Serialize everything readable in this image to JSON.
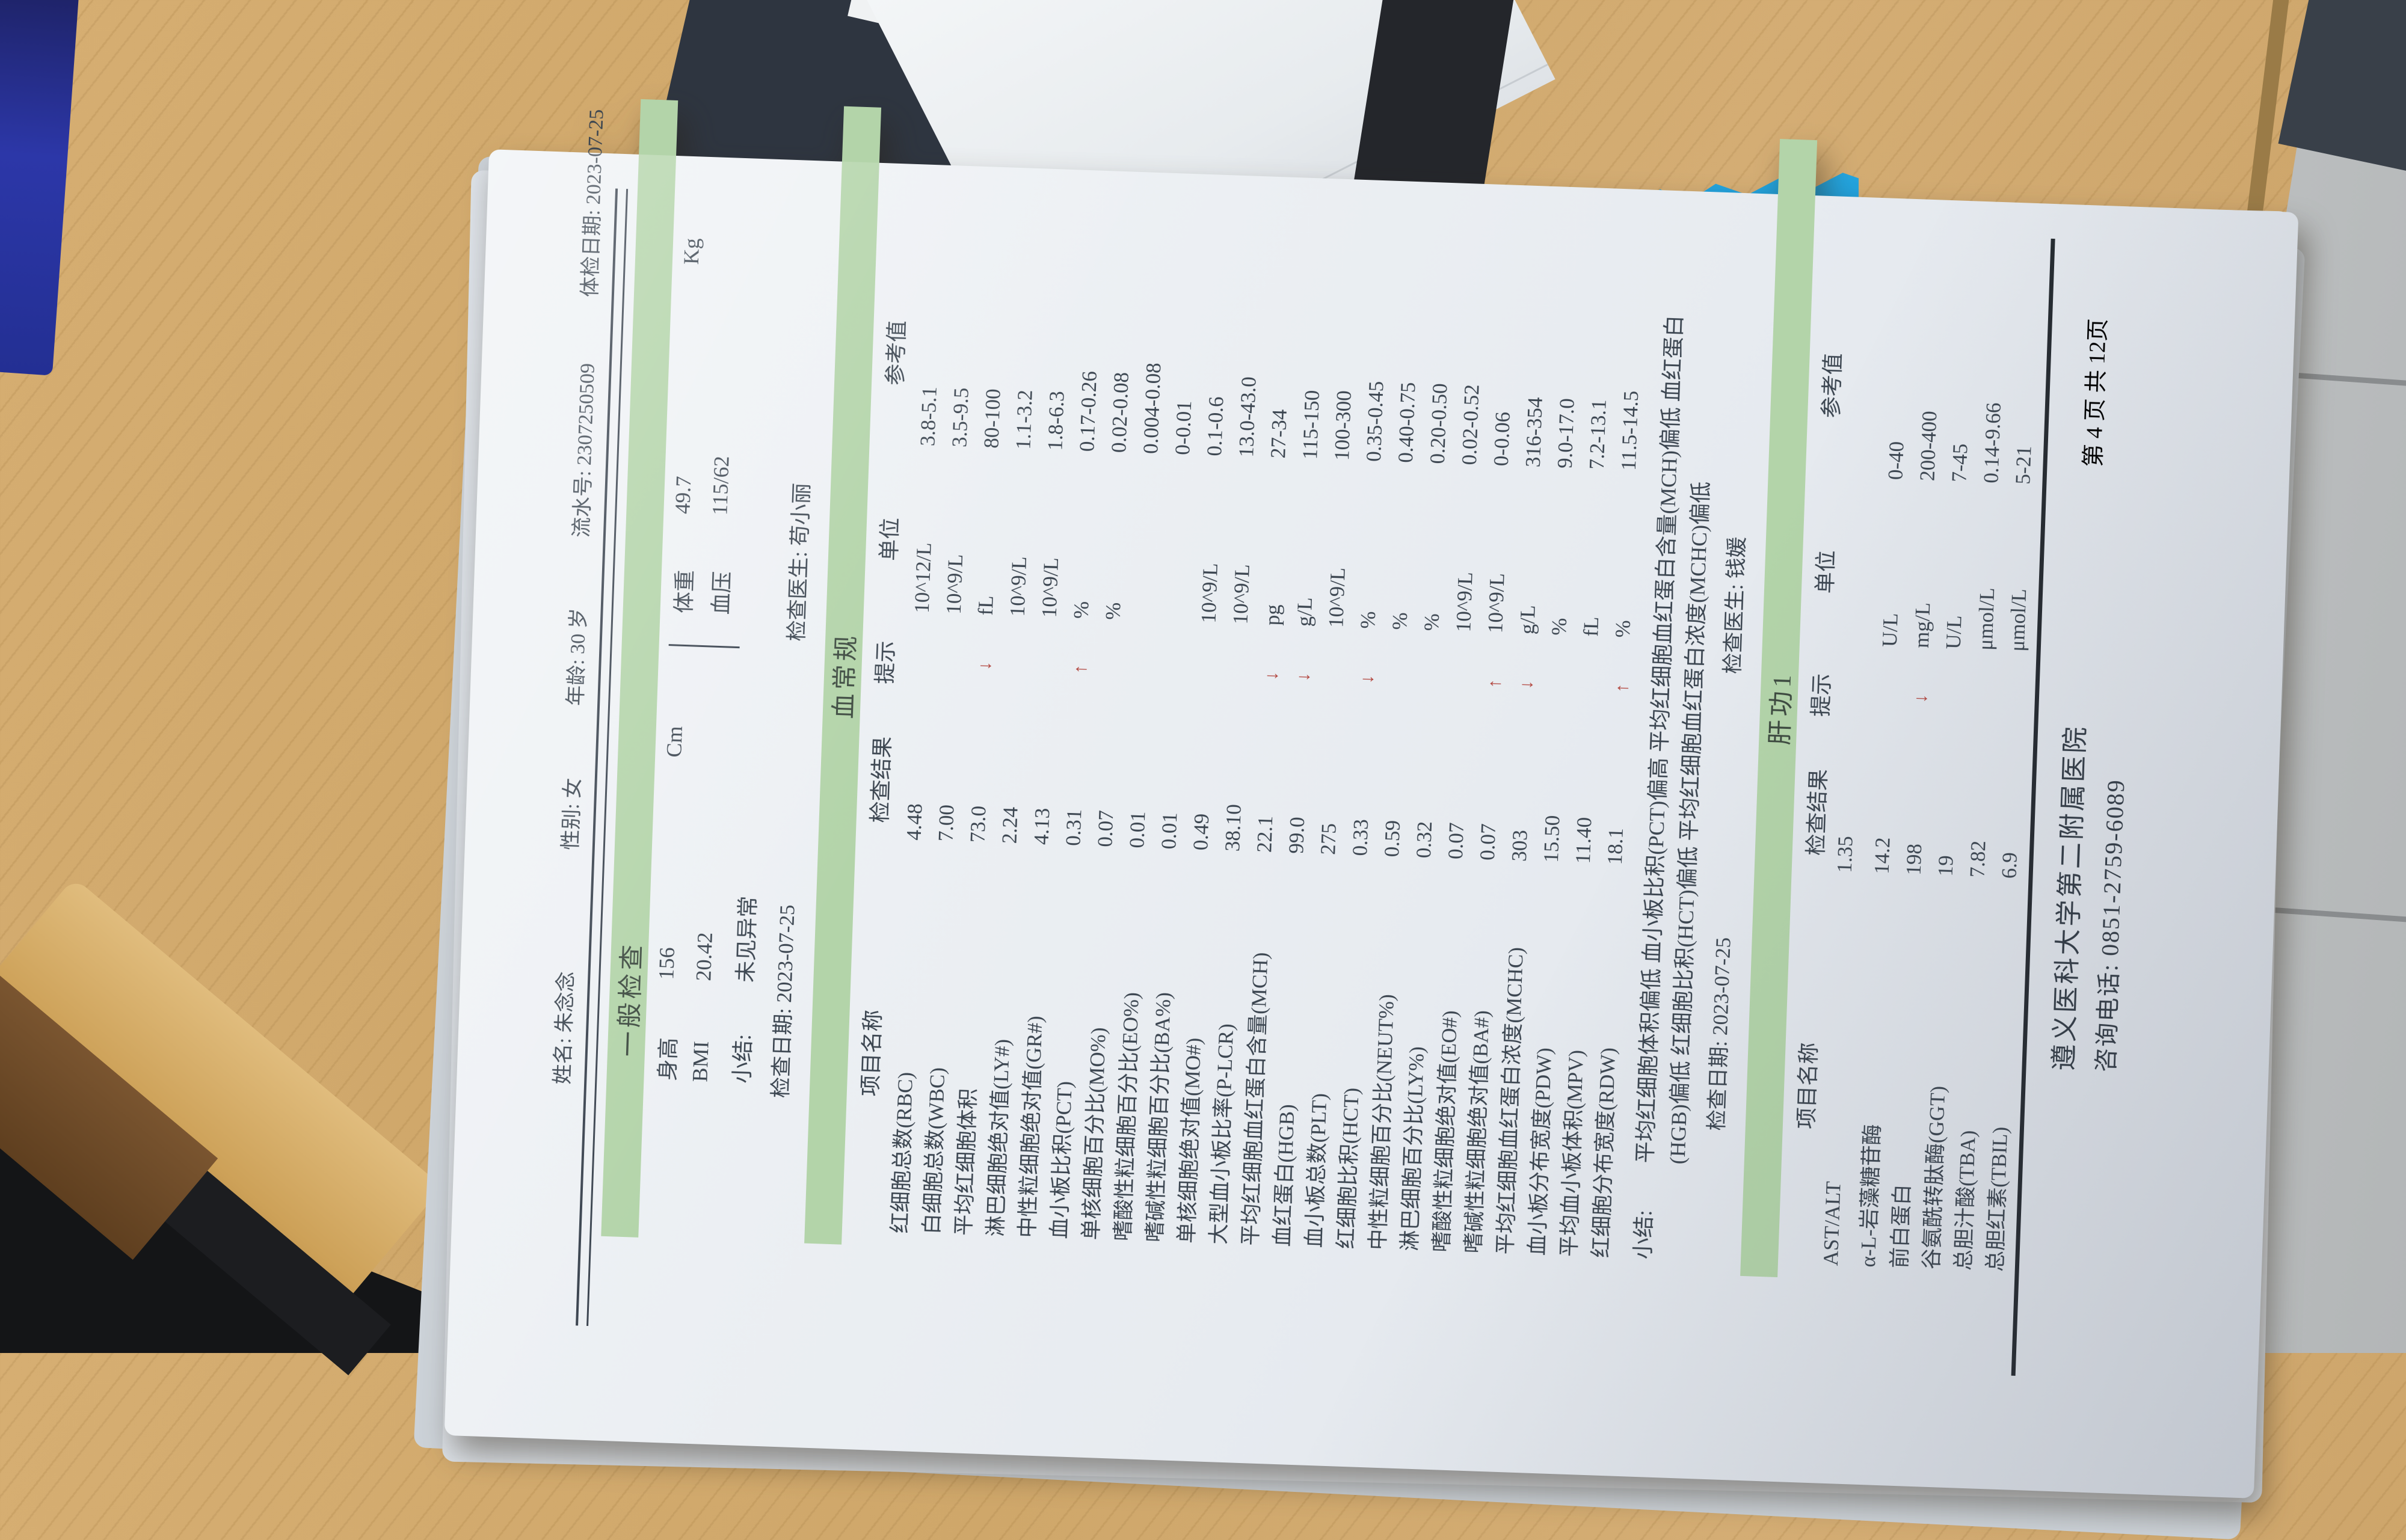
{
  "colors": {
    "green_bar": "#b3d4a9",
    "flag_red": "#b2453e",
    "paper": "#e7ebf0",
    "wood": "#cfa76a",
    "floor": "#b6b9ba"
  },
  "header": {
    "name": "姓名: 朱念念",
    "sex": "性别: 女",
    "age": "年龄: 30 岁",
    "serial": "流水号: 2307250509",
    "exam_date": "体检日期: 2023-07-25"
  },
  "general": {
    "title": "一般检查",
    "height_label": "身高",
    "height_value": "156",
    "height_unit": "Cm",
    "weight_label": "体重",
    "weight_value": "49.7",
    "weight_unit": "Kg",
    "bmi_label": "BMI",
    "bmi_value": "20.42",
    "bp_label": "血压",
    "bp_value": "115/62",
    "summary_label": "小结:",
    "summary_value": "未见异常"
  },
  "blood": {
    "check_date": "检查日期: 2023-07-25",
    "doctor": "检查医生: 苟小丽",
    "title": "血常规",
    "columns": [
      "项目名称",
      "检查结果",
      "提示",
      "单位",
      "参考值"
    ],
    "rows": [
      [
        "红细胞总数(RBC)",
        "4.48",
        "",
        "10^12/L",
        "3.8-5.1"
      ],
      [
        "白细胞总数(WBC)",
        "7.00",
        "",
        "10^9/L",
        "3.5-9.5"
      ],
      [
        "平均红细胞体积",
        "73.0",
        "↓",
        "fL",
        "80-100"
      ],
      [
        "淋巴细胞绝对值(LY#)",
        "2.24",
        "",
        "10^9/L",
        "1.1-3.2"
      ],
      [
        "中性粒细胞绝对值(GR#)",
        "4.13",
        "",
        "10^9/L",
        "1.8-6.3"
      ],
      [
        "血小板比积(PCT)",
        "0.31",
        "↑",
        "%",
        "0.17-0.26"
      ],
      [
        "单核细胞百分比(MO%)",
        "0.07",
        "",
        "%",
        "0.02-0.08"
      ],
      [
        "嗜酸性粒细胞百分比(EO%)",
        "0.01",
        "",
        "",
        "0.004-0.08"
      ],
      [
        "嗜碱性粒细胞百分比(BA%)",
        "0.01",
        "",
        "",
        "0-0.01"
      ],
      [
        "单核细胞绝对值(MO#)",
        "0.49",
        "",
        "10^9/L",
        "0.1-0.6"
      ],
      [
        "大型血小板比率(P-LCR)",
        "38.10",
        "",
        "10^9/L",
        "13.0-43.0"
      ],
      [
        "平均红细胞血红蛋白含量(MCH)",
        "22.1",
        "↓",
        "pg",
        "27-34"
      ],
      [
        "血红蛋白(HGB)",
        "99.0",
        "↓",
        "g/L",
        "115-150"
      ],
      [
        "血小板总数(PLT)",
        "275",
        "",
        "10^9/L",
        "100-300"
      ],
      [
        "红细胞比积(HCT)",
        "0.33",
        "↓",
        "%",
        "0.35-0.45"
      ],
      [
        "中性粒细胞百分比(NEUT%)",
        "0.59",
        "",
        "%",
        "0.40-0.75"
      ],
      [
        "淋巴细胞百分比(LY%)",
        "0.32",
        "",
        "%",
        "0.20-0.50"
      ],
      [
        "嗜酸性粒细胞绝对值(EO#)",
        "0.07",
        "",
        "10^9/L",
        "0.02-0.52"
      ],
      [
        "嗜碱性粒细胞绝对值(BA#)",
        "0.07",
        "↑",
        "10^9/L",
        "0-0.06"
      ],
      [
        "平均红细胞血红蛋白浓度(MCHC)",
        "303",
        "↓",
        "g/L",
        "316-354"
      ],
      [
        "血小板分布宽度(PDW)",
        "15.50",
        "",
        "%",
        "9.0-17.0"
      ],
      [
        "平均血小板体积(MPV)",
        "11.40",
        "",
        "fL",
        "7.2-13.1"
      ],
      [
        "红细胞分布宽度(RDW)",
        "18.1",
        "↑",
        "%",
        "11.5-14.5"
      ]
    ],
    "summary_label": "小结:",
    "summary": "平均红细胞体积偏低  血小板比积(PCT)偏高  平均红细胞血红蛋白含量(MCH)偏低  血红蛋白(HGB)偏低  红细胞比积(HCT)偏低  平均红细胞血红蛋白浓度(MCHC)偏低"
  },
  "liver": {
    "check_date": "检查日期: 2023-07-25",
    "doctor": "检查医生: 钱媛",
    "title": "肝功1",
    "columns": [
      "项目名称",
      "检查结果",
      "提示",
      "单位",
      "参考值"
    ],
    "rows": [
      [
        "AST/ALT",
        "1.35",
        "",
        "",
        ""
      ],
      [
        "α-L-岩藻糖苷酶",
        "14.2",
        "",
        "U/L",
        "0-40"
      ],
      [
        "前白蛋白",
        "198",
        "↓",
        "mg/L",
        "200-400"
      ],
      [
        "谷氨酰转肽酶(GGT)",
        "19",
        "",
        "U/L",
        "7-45"
      ],
      [
        "总胆汁酸(TBA)",
        "7.82",
        "",
        "μmol/L",
        "0.14-9.66"
      ],
      [
        "总胆红素(TBIL)",
        "6.9",
        "",
        "μmol/L",
        "5-21"
      ]
    ]
  },
  "footer": {
    "hospital": "遵义医科大学第二附属医院",
    "phone": "咨询电话: 0851-2759-6089",
    "page": "第 4 页 共 12页"
  }
}
